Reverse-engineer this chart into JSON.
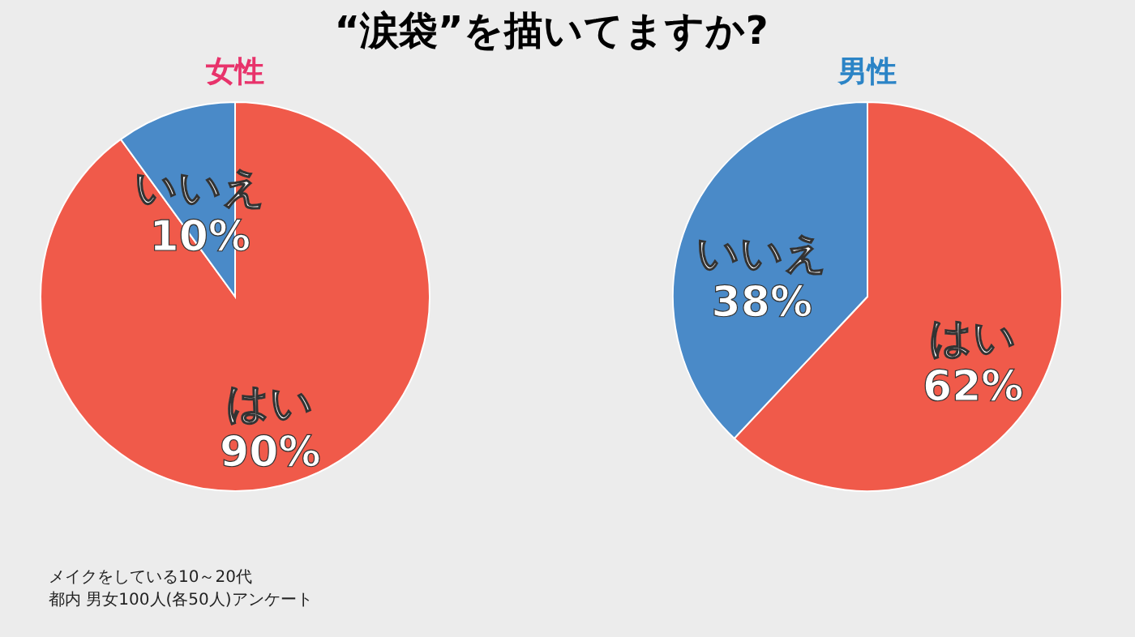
{
  "chart_data": [
    {
      "type": "pie",
      "title": "“涙袋”を描いてますか?",
      "subtitle": "女性",
      "categories": [
        "はい",
        "いいえ"
      ],
      "values": [
        90,
        10
      ],
      "value_labels": [
        "90%",
        "10%"
      ],
      "colors": [
        "#f05a4a",
        "#4a8ac8"
      ],
      "annotations": [
        "メイクをしている10～20代",
        "都内 男女100人(各50人)アンケート"
      ]
    },
    {
      "type": "pie",
      "subtitle": "男性",
      "categories": [
        "はい",
        "いいえ"
      ],
      "values": [
        62,
        38
      ],
      "value_labels": [
        "62%",
        "38%"
      ],
      "colors": [
        "#f05a4a",
        "#4a8ac8"
      ]
    }
  ]
}
